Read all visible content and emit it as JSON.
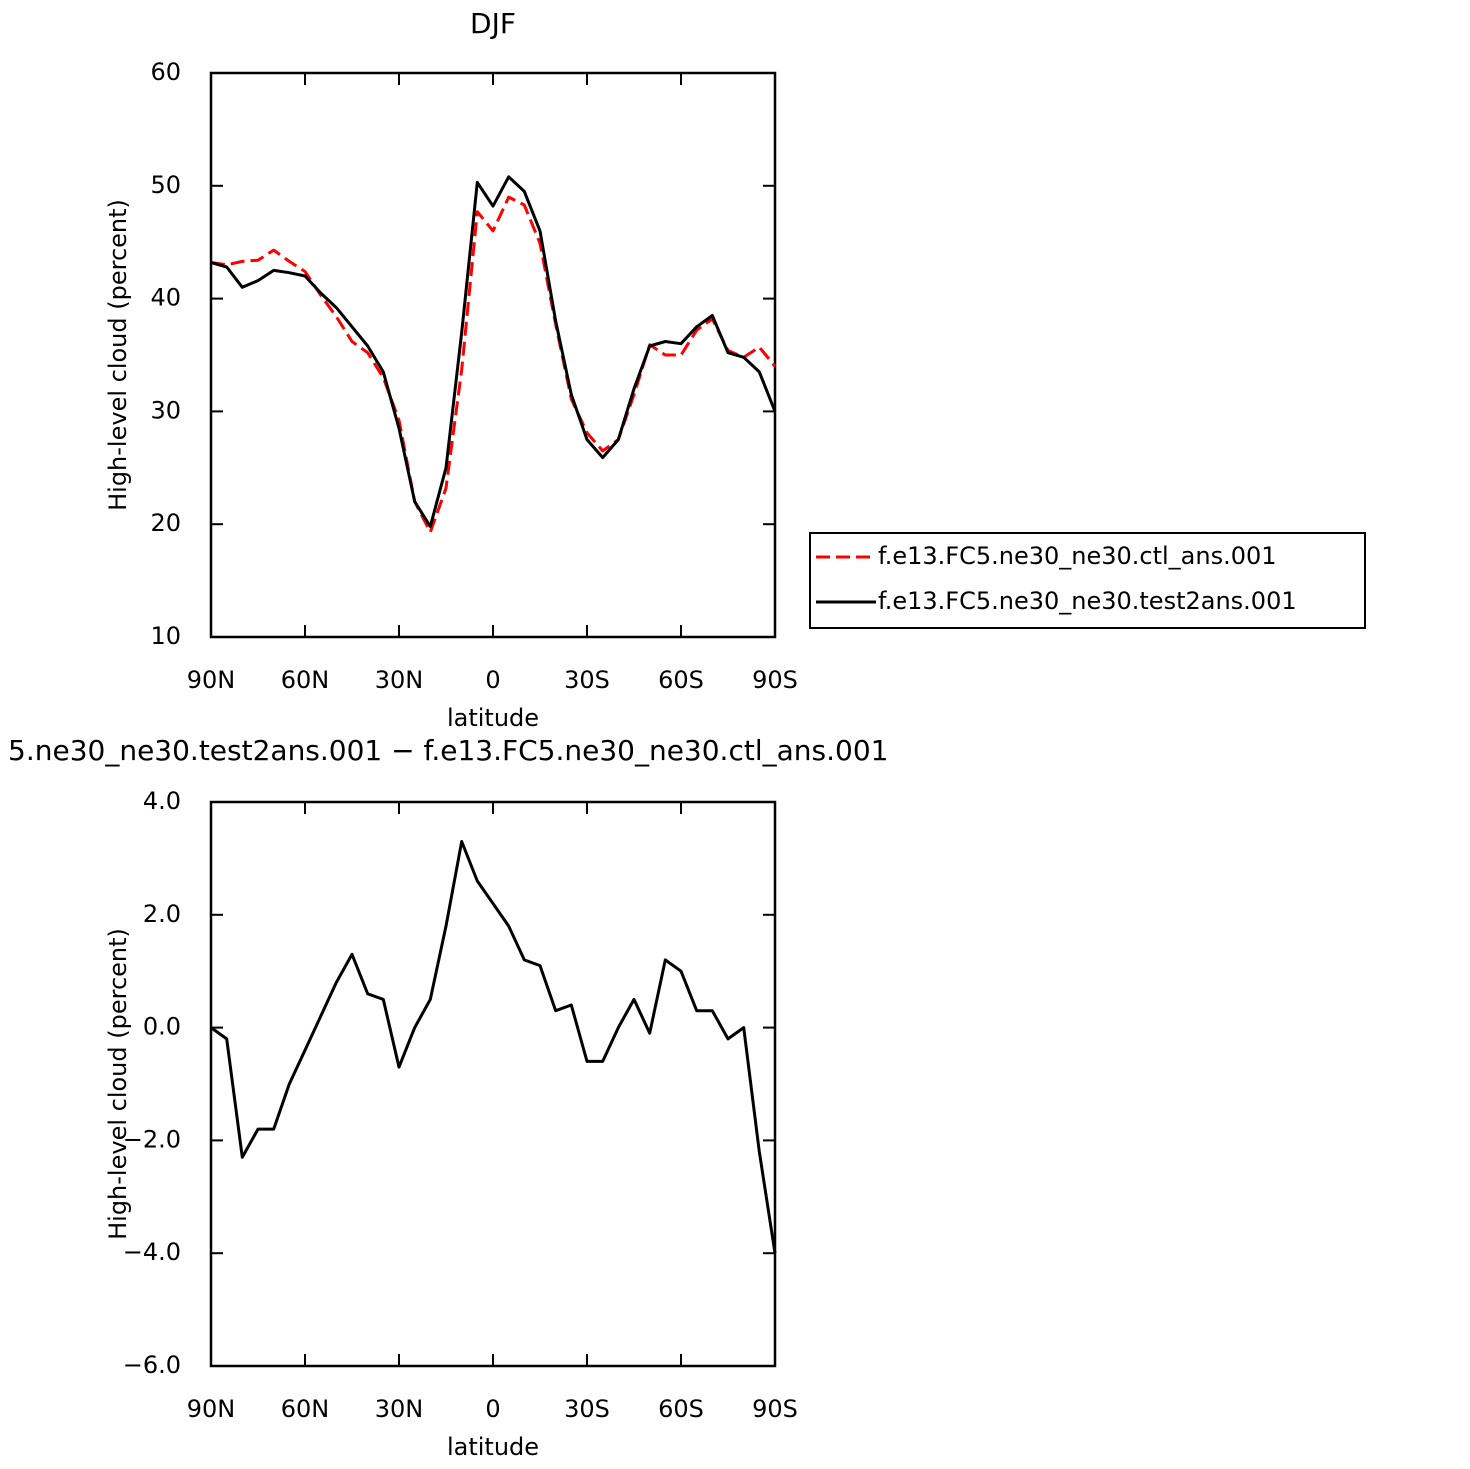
{
  "chart_data": [
    {
      "type": "line",
      "title": "DJF",
      "x_label": "latitude",
      "y_label": "High-level cloud (percent)",
      "x": [
        90,
        85,
        80,
        75,
        70,
        65,
        60,
        55,
        50,
        45,
        40,
        35,
        30,
        25,
        20,
        15,
        10,
        5,
        0,
        -5,
        -10,
        -15,
        -20,
        -25,
        -30,
        -35,
        -40,
        -45,
        -50,
        -55,
        -60,
        -65,
        -70,
        -75,
        -80,
        -85,
        -90
      ],
      "xlim": [
        90,
        -90
      ],
      "xticks": [
        {
          "value": 90,
          "label": "90N"
        },
        {
          "value": 60,
          "label": "60N"
        },
        {
          "value": 30,
          "label": "30N"
        },
        0,
        {
          "value": -30,
          "label": "30S"
        },
        {
          "value": -60,
          "label": "60S"
        },
        {
          "value": -90,
          "label": "90S"
        }
      ],
      "ylim": [
        10,
        60
      ],
      "yticks": [
        10,
        20,
        30,
        40,
        50,
        60
      ],
      "legend": "right",
      "series": [
        {
          "name": "f.e13.FC5.ne30_ne30.ctl_ans.001",
          "color": "#ff0000",
          "dash": true,
          "values": [
            43.2,
            43.0,
            43.3,
            43.4,
            44.3,
            43.3,
            42.4,
            40.3,
            38.4,
            36.2,
            35.2,
            33.0,
            29.2,
            22.0,
            19.3,
            23.2,
            33.7,
            47.7,
            46.0,
            49.0,
            48.3,
            44.9,
            37.7,
            31.1,
            28.1,
            26.5,
            27.5,
            31.5,
            35.9,
            35.0,
            35.0,
            37.2,
            38.2,
            35.4,
            34.8,
            35.7,
            34.0
          ]
        },
        {
          "name": "f.e13.FC5.ne30_ne30.test2ans.001",
          "color": "#000000",
          "dash": false,
          "values": [
            43.2,
            42.8,
            41.0,
            41.6,
            42.5,
            42.3,
            42.0,
            40.5,
            39.2,
            37.5,
            35.8,
            33.5,
            28.5,
            22.0,
            19.8,
            25.0,
            37.0,
            50.3,
            48.2,
            50.8,
            49.5,
            46.0,
            38.0,
            31.5,
            27.5,
            25.9,
            27.5,
            32.0,
            35.8,
            36.2,
            36.0,
            37.5,
            38.5,
            35.2,
            34.8,
            33.5,
            30.0
          ]
        }
      ]
    },
    {
      "type": "line",
      "title": "5.ne30_ne30.test2ans.001 − f.e13.FC5.ne30_ne30.ctl_ans.001",
      "x_label": "latitude",
      "y_label": "High-level cloud (percent)",
      "x": [
        90,
        85,
        80,
        75,
        70,
        65,
        60,
        55,
        50,
        45,
        40,
        35,
        30,
        25,
        20,
        15,
        10,
        5,
        0,
        -5,
        -10,
        -15,
        -20,
        -25,
        -30,
        -35,
        -40,
        -45,
        -50,
        -55,
        -60,
        -65,
        -70,
        -75,
        -80,
        -85,
        -90
      ],
      "xlim": [
        90,
        -90
      ],
      "xticks": [
        {
          "value": 90,
          "label": "90N"
        },
        {
          "value": 60,
          "label": "60N"
        },
        {
          "value": 30,
          "label": "30N"
        },
        0,
        {
          "value": -30,
          "label": "30S"
        },
        {
          "value": -60,
          "label": "60S"
        },
        {
          "value": -90,
          "label": "90S"
        }
      ],
      "ylim": [
        -6,
        4
      ],
      "yticks": [
        {
          "value": -6,
          "label": "−6.0"
        },
        {
          "value": -4,
          "label": "−4.0"
        },
        {
          "value": -2,
          "label": "−2.0"
        },
        {
          "value": 0,
          "label": "0.0"
        },
        {
          "value": 2,
          "label": "2.0"
        },
        {
          "value": 4,
          "label": "4.0"
        }
      ],
      "color": "#000000",
      "values": [
        0.0,
        -0.2,
        -2.3,
        -1.8,
        -1.8,
        -1.0,
        -0.4,
        0.2,
        0.8,
        1.3,
        0.6,
        0.5,
        -0.7,
        0.0,
        0.5,
        1.8,
        3.3,
        2.6,
        2.2,
        1.8,
        1.2,
        1.1,
        0.3,
        0.4,
        -0.6,
        -0.6,
        0.0,
        0.5,
        -0.1,
        1.2,
        1.0,
        0.3,
        0.3,
        -0.2,
        0.0,
        -2.2,
        -4.0
      ]
    }
  ]
}
